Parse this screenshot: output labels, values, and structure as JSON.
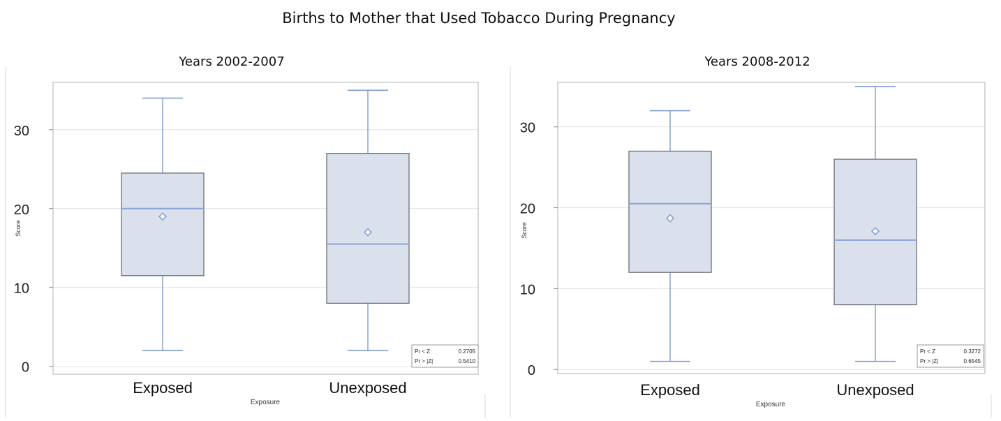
{
  "main_title": "Births to Mother that Used Tobacco During Pregnancy",
  "colors": {
    "box_fill": "#dbe1ec",
    "box_border": "#5f6670",
    "median": "#8aa3d6",
    "whisker": "#7f9bd0",
    "mean_marker": "#7f9bd0",
    "grid": "#e6e6e6",
    "frame": "#bdbdbd"
  },
  "chart_data": [
    {
      "type": "box",
      "title": "Years 2002-2007",
      "xlabel": "Exposure",
      "ylabel": "Score",
      "yticks": [
        0,
        10,
        20,
        30
      ],
      "ylim": [
        -1,
        36
      ],
      "grid": true,
      "categories": [
        "Exposed",
        "Unexposed"
      ],
      "boxes": [
        {
          "category": "Exposed",
          "min": 2,
          "q1": 11.5,
          "median": 20,
          "q3": 24.5,
          "max": 34,
          "mean": 19
        },
        {
          "category": "Unexposed",
          "min": 2,
          "q1": 8,
          "median": 15.5,
          "q3": 27,
          "max": 35,
          "mean": 17
        }
      ],
      "stats": [
        {
          "label": "Pr < Z",
          "value": "0.2705"
        },
        {
          "label": "Pr > |Z|",
          "value": "0.5410"
        }
      ]
    },
    {
      "type": "box",
      "title": "Years 2008-2012",
      "xlabel": "Exposure",
      "ylabel": "Score",
      "yticks": [
        0,
        10,
        20,
        30
      ],
      "ylim": [
        -0.5,
        35.5
      ],
      "grid": true,
      "categories": [
        "Exposed",
        "Unexposed"
      ],
      "boxes": [
        {
          "category": "Exposed",
          "min": 1,
          "q1": 12,
          "median": 20.5,
          "q3": 27,
          "max": 32,
          "mean": 18.7
        },
        {
          "category": "Unexposed",
          "min": 1,
          "q1": 8,
          "median": 16,
          "q3": 26,
          "max": 35,
          "mean": 17.1
        }
      ],
      "stats": [
        {
          "label": "Pr < Z",
          "value": "0.3272"
        },
        {
          "label": "Pr > |Z|",
          "value": "0.6545"
        }
      ]
    }
  ]
}
